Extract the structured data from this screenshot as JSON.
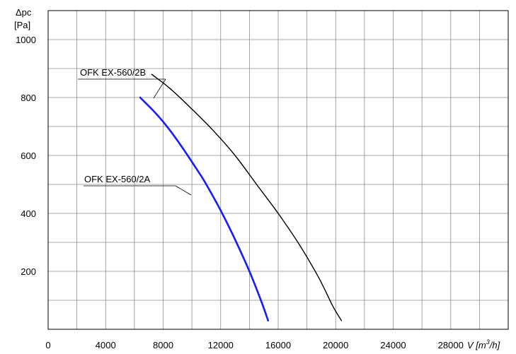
{
  "chart_data": {
    "type": "line",
    "title": "",
    "ylabel_line1": "Δpc",
    "ylabel_line2": "[Pa]",
    "xlabel_main": "V [m",
    "xlabel_sup": "3",
    "xlabel_end": "/h]",
    "xlim": [
      0,
      32000
    ],
    "ylim": [
      0,
      1100
    ],
    "x_ticks": [
      0,
      4000,
      8000,
      12000,
      16000,
      20000,
      24000,
      28000
    ],
    "y_ticks": [
      200,
      400,
      600,
      800,
      1000
    ],
    "x_tick_labels": [
      "0",
      "4000",
      "8000",
      "12000",
      "16000",
      "20000",
      "24000",
      "28000"
    ],
    "y_tick_labels": [
      "200",
      "400",
      "600",
      "800",
      "1000"
    ],
    "x_minor_step": 2000,
    "y_minor_step": 100,
    "grid": true,
    "series": [
      {
        "name": "OFK EX-560/2A",
        "color": "#1a1aff",
        "points": [
          [
            6400,
            800
          ],
          [
            7500,
            745
          ],
          [
            8500,
            685
          ],
          [
            9500,
            615
          ],
          [
            10500,
            540
          ],
          [
            11000,
            500
          ],
          [
            12000,
            410
          ],
          [
            13000,
            310
          ],
          [
            14000,
            200
          ],
          [
            14800,
            100
          ],
          [
            15300,
            30
          ]
        ]
      },
      {
        "name": "OFK EX-560/2B",
        "color": "#000000",
        "points": [
          [
            7200,
            880
          ],
          [
            8500,
            830
          ],
          [
            10000,
            760
          ],
          [
            11500,
            685
          ],
          [
            13000,
            600
          ],
          [
            14500,
            500
          ],
          [
            16000,
            400
          ],
          [
            17500,
            290
          ],
          [
            18800,
            180
          ],
          [
            19800,
            80
          ],
          [
            20400,
            30
          ]
        ]
      }
    ]
  }
}
